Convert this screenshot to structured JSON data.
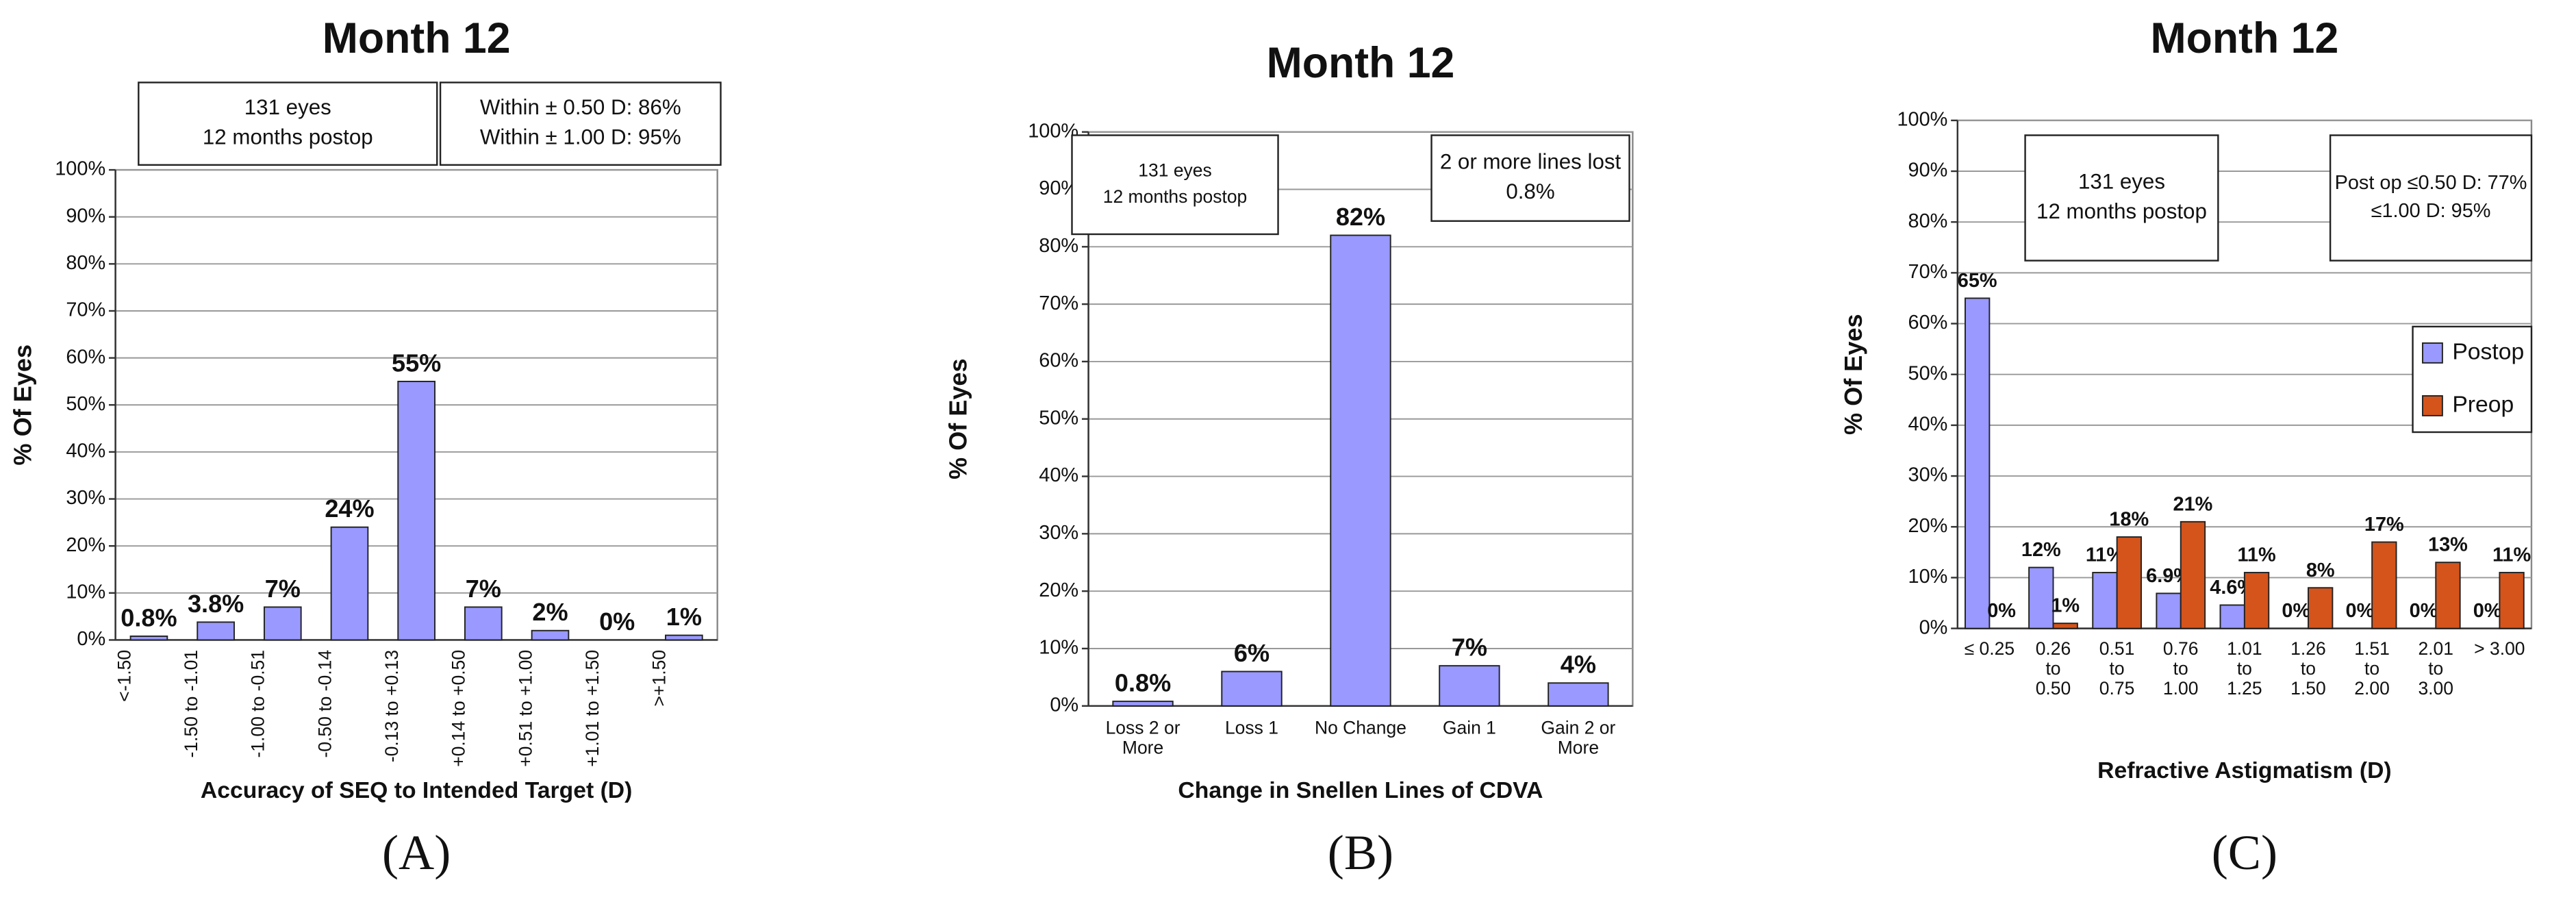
{
  "chart_data": [
    {
      "type": "bar",
      "title": "Month 12",
      "panel_label": "(A)",
      "x_label": "Accuracy of SEQ to Intended Target (D)",
      "y_label": "% Of Eyes",
      "annotations": [
        [
          "131 eyes",
          "12 months postop"
        ],
        [
          "Within ± 0.50 D: 86%",
          "Within ± 1.00 D: 95%"
        ]
      ],
      "categories": [
        "<-1.50",
        "-1.50 to -1.01",
        "-1.00 to -0.51",
        "-0.50 to -0.14",
        "-0.13 to +0.13",
        "+0.14 to +0.50",
        "+0.51 to +1.00",
        "+1.01 to +1.50",
        ">+1.50"
      ],
      "values": [
        0.8,
        3.8,
        7,
        24,
        55,
        7,
        2,
        0,
        1
      ],
      "value_labels": [
        "0.8%",
        "3.8%",
        "7%",
        "24%",
        "55%",
        "7%",
        "2%",
        "0%",
        "1%"
      ],
      "color": "#9999ff",
      "grid": true,
      "ylim": [
        0,
        100
      ],
      "yticks": [
        {
          "value": 0,
          "label": "0%"
        },
        {
          "value": 10,
          "label": "10%"
        },
        {
          "value": 20,
          "label": "20%"
        },
        {
          "value": 30,
          "label": "30%"
        },
        {
          "value": 40,
          "label": "40%"
        },
        {
          "value": 50,
          "label": "50%"
        },
        {
          "value": 60,
          "label": "60%"
        },
        {
          "value": 70,
          "label": "70%"
        },
        {
          "value": 80,
          "label": "80%"
        },
        {
          "value": 90,
          "label": "90%"
        },
        {
          "value": 100,
          "label": "100%"
        }
      ]
    },
    {
      "type": "bar",
      "title": "Month 12",
      "panel_label": "(B)",
      "x_label": "Change in Snellen Lines of CDVA",
      "y_label": "% Of Eyes",
      "annotations": [
        [
          "131 eyes",
          "12 months postop"
        ],
        [
          "2 or more lines lost",
          "0.8%"
        ]
      ],
      "categories": [
        "Loss 2 or More",
        "Loss 1",
        "No Change",
        "Gain 1",
        "Gain 2 or More"
      ],
      "values": [
        0.8,
        6,
        82,
        7,
        4
      ],
      "value_labels": [
        "0.8%",
        "6%",
        "82%",
        "7%",
        "4%"
      ],
      "color": "#9999ff",
      "grid": true,
      "ylim": [
        0,
        100
      ],
      "yticks": [
        {
          "value": 0,
          "label": "0%"
        },
        {
          "value": 10,
          "label": "10%"
        },
        {
          "value": 20,
          "label": "20%"
        },
        {
          "value": 30,
          "label": "30%"
        },
        {
          "value": 40,
          "label": "40%"
        },
        {
          "value": 50,
          "label": "50%"
        },
        {
          "value": 60,
          "label": "60%"
        },
        {
          "value": 70,
          "label": "70%"
        },
        {
          "value": 80,
          "label": "80%"
        },
        {
          "value": 90,
          "label": "90%"
        },
        {
          "value": 100,
          "label": "100%"
        }
      ]
    },
    {
      "type": "grouped_bar",
      "title": "Month 12",
      "panel_label": "(C)",
      "x_label": "Refractive Astigmatism (D)",
      "y_label": "% Of Eyes",
      "annotations": [
        [
          "131 eyes",
          "12 months postop"
        ],
        [
          "Post op ≤0.50 D: 77%",
          "≤1.00 D: 95%"
        ]
      ],
      "categories": [
        "≤ 0.25",
        "0.26 to 0.50",
        "0.51 to 0.75",
        "0.76 to 1.00",
        "1.01 to 1.25",
        "1.26 to 1.50",
        "1.51 to 2.00",
        "2.01 to 3.00",
        "> 3.00"
      ],
      "series": [
        {
          "name": "Postop",
          "color": "#9999ff",
          "values": [
            65,
            12,
            11,
            6.9,
            4.6,
            0,
            0,
            0,
            0
          ],
          "value_labels": [
            "65%",
            "12%",
            "11%",
            "6.9%",
            "4.6%",
            "0%",
            "0%",
            "0%",
            "0%"
          ]
        },
        {
          "name": "Preop",
          "color": "#d4541c",
          "values": [
            0,
            1,
            18,
            21,
            11,
            8,
            17,
            13,
            11
          ],
          "value_labels": [
            "0%",
            "1%",
            "18%",
            "21%",
            "11%",
            "8%",
            "17%",
            "13%",
            "11%"
          ]
        }
      ],
      "legend": "upper right",
      "grid": true,
      "ylim": [
        0,
        100
      ],
      "yticks": [
        {
          "value": 0,
          "label": "0%"
        },
        {
          "value": 10,
          "label": "10%"
        },
        {
          "value": 20,
          "label": "20%"
        },
        {
          "value": 30,
          "label": "30%"
        },
        {
          "value": 40,
          "label": "40%"
        },
        {
          "value": 50,
          "label": "50%"
        },
        {
          "value": 60,
          "label": "60%"
        },
        {
          "value": 70,
          "label": "70%"
        },
        {
          "value": 80,
          "label": "80%"
        },
        {
          "value": 90,
          "label": "90%"
        },
        {
          "value": 100,
          "label": "100%"
        }
      ]
    }
  ]
}
